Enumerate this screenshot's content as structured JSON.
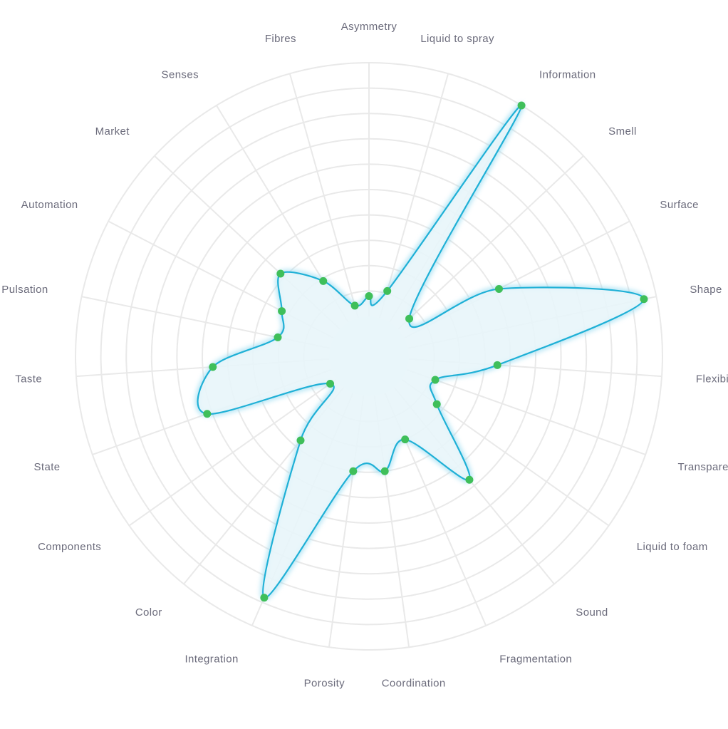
{
  "chart_data": {
    "type": "radar",
    "title": "",
    "categories": [
      "Asymmetry",
      "Liquid to spray",
      "Information",
      "Smell",
      "Surface",
      "Shape",
      "Flexibility",
      "Transparency",
      "Liquid to foam",
      "Sound",
      "Fragmentation",
      "Coordination",
      "Porosity",
      "Integration",
      "Color",
      "Components",
      "State",
      "Taste",
      "Pulsation",
      "Automation",
      "Market",
      "Senses",
      "Fibres"
    ],
    "series": [
      {
        "values": [
          0.8,
          1.1,
          10.0,
          0.6,
          4.2,
          9.5,
          3.5,
          1.2,
          1.7,
          4.7,
          2.0,
          3.0,
          3.0,
          8.8,
          2.7,
          0.3,
          5.2,
          4.6,
          2.1,
          2.3,
          3.2,
          1.9,
          0.5
        ]
      }
    ],
    "rlim": [
      0,
      10
    ],
    "rings": 10,
    "grid": true,
    "legend": "none",
    "colors": {
      "line": "#1fb0d6",
      "fill": "#e8f5fa",
      "glow": "#8fd8ef",
      "point": "#3fbf5a",
      "grid": "#e9e9e9",
      "label": "#6b6b7b",
      "center": "#f3f8fb"
    }
  }
}
